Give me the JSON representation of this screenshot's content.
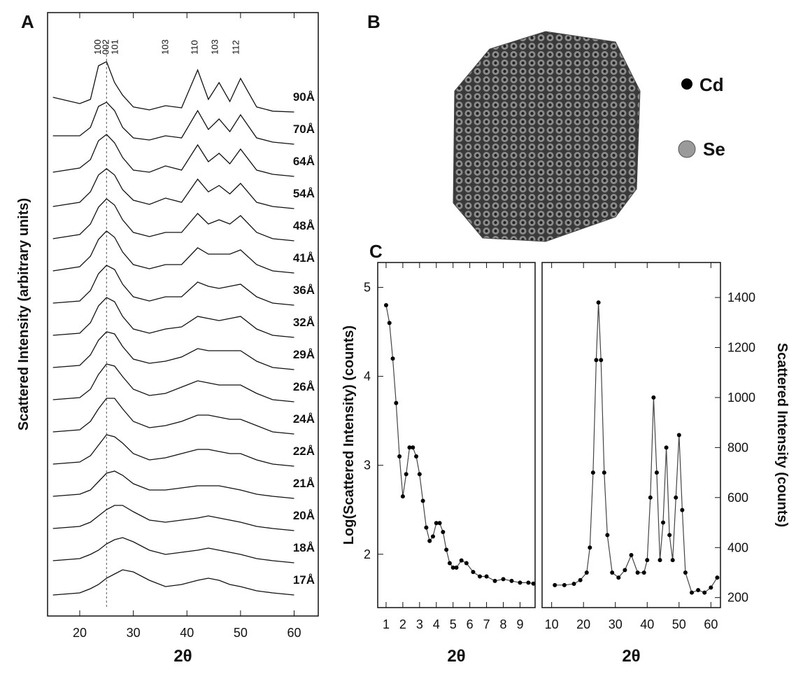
{
  "figure": {
    "panel_labels": [
      "A",
      "B",
      "C"
    ],
    "legend": [
      {
        "name": "Cd",
        "color": "#000000"
      },
      {
        "name": "Se",
        "color": "#9a9a9a"
      }
    ]
  },
  "chart_data": [
    {
      "type": "line",
      "xlabel": "2θ",
      "ylabel": "Scattered Intensity (arbitrary units)",
      "xlim": [
        14,
        64.5
      ],
      "xticks": [
        20,
        30,
        40,
        50,
        60
      ],
      "ref_line": 25,
      "annotations": [
        {
          "text": "100",
          "x": 23.9
        },
        {
          "text": "002",
          "x": 25.4
        },
        {
          "text": "101",
          "x": 27.1
        },
        {
          "text": "103",
          "x": 36.5
        },
        {
          "text": "110",
          "x": 42
        },
        {
          "text": "103",
          "x": 45.8
        },
        {
          "text": "112",
          "x": 49.7
        }
      ],
      "x": [
        15,
        20,
        22,
        23.5,
        25,
        26.5,
        28,
        30,
        33,
        36,
        39,
        42,
        44,
        46,
        48,
        50,
        53,
        56,
        60
      ],
      "series": [
        {
          "name": "90Å",
          "color": "#111111",
          "values": [
            0.35,
            0.2,
            0.3,
            1.1,
            1.2,
            0.7,
            0.4,
            0.12,
            0.05,
            0.15,
            0.1,
            1.0,
            0.3,
            0.7,
            0.25,
            0.8,
            0.12,
            0.02,
            0.0
          ]
        },
        {
          "name": "70Å",
          "color": "#111111",
          "values": [
            0.2,
            0.2,
            0.4,
            0.9,
            1.0,
            0.8,
            0.4,
            0.15,
            0.1,
            0.2,
            0.15,
            0.8,
            0.35,
            0.6,
            0.3,
            0.7,
            0.15,
            0.05,
            0.0
          ]
        },
        {
          "name": "64Å",
          "color": "#111111",
          "values": [
            0.1,
            0.2,
            0.4,
            0.85,
            1.0,
            0.8,
            0.45,
            0.15,
            0.1,
            0.25,
            0.15,
            0.75,
            0.35,
            0.55,
            0.3,
            0.65,
            0.15,
            0.05,
            0.0
          ]
        },
        {
          "name": "54Å",
          "color": "#111111",
          "values": [
            0.05,
            0.15,
            0.4,
            0.8,
            0.95,
            0.8,
            0.45,
            0.2,
            0.1,
            0.25,
            0.15,
            0.7,
            0.4,
            0.55,
            0.35,
            0.6,
            0.15,
            0.05,
            0.0
          ]
        },
        {
          "name": "48Å",
          "color": "#111111",
          "values": [
            0.05,
            0.15,
            0.4,
            0.8,
            1.0,
            0.85,
            0.5,
            0.2,
            0.1,
            0.2,
            0.2,
            0.65,
            0.4,
            0.5,
            0.4,
            0.6,
            0.2,
            0.05,
            0.0
          ]
        },
        {
          "name": "41Å",
          "color": "#111111",
          "values": [
            0.05,
            0.15,
            0.4,
            0.8,
            1.0,
            0.85,
            0.5,
            0.2,
            0.1,
            0.2,
            0.2,
            0.6,
            0.45,
            0.45,
            0.45,
            0.55,
            0.2,
            0.05,
            0.0
          ]
        },
        {
          "name": "36Å",
          "color": "#111111",
          "values": [
            0.05,
            0.1,
            0.35,
            0.75,
            0.95,
            0.85,
            0.5,
            0.2,
            0.1,
            0.2,
            0.2,
            0.55,
            0.45,
            0.4,
            0.45,
            0.5,
            0.2,
            0.05,
            0.0
          ]
        },
        {
          "name": "32Å",
          "color": "#111111",
          "values": [
            0.05,
            0.1,
            0.35,
            0.75,
            0.95,
            0.85,
            0.5,
            0.2,
            0.1,
            0.2,
            0.25,
            0.5,
            0.45,
            0.4,
            0.45,
            0.5,
            0.2,
            0.05,
            0.0
          ]
        },
        {
          "name": "29Å",
          "color": "#111111",
          "values": [
            0.05,
            0.1,
            0.35,
            0.7,
            0.9,
            0.85,
            0.55,
            0.25,
            0.15,
            0.2,
            0.3,
            0.5,
            0.45,
            0.45,
            0.45,
            0.45,
            0.2,
            0.05,
            0.0
          ]
        },
        {
          "name": "26Å",
          "color": "#111111",
          "values": [
            0.05,
            0.1,
            0.3,
            0.65,
            0.9,
            0.85,
            0.6,
            0.3,
            0.15,
            0.2,
            0.35,
            0.5,
            0.45,
            0.4,
            0.4,
            0.4,
            0.2,
            0.05,
            0.0
          ]
        },
        {
          "name": "24Å",
          "color": "#111111",
          "values": [
            0.05,
            0.1,
            0.3,
            0.6,
            0.85,
            0.85,
            0.6,
            0.3,
            0.15,
            0.2,
            0.3,
            0.45,
            0.45,
            0.4,
            0.35,
            0.35,
            0.2,
            0.05,
            0.0
          ]
        },
        {
          "name": "22Å",
          "color": "#111111",
          "values": [
            0.05,
            0.1,
            0.25,
            0.5,
            0.75,
            0.7,
            0.55,
            0.3,
            0.15,
            0.2,
            0.3,
            0.4,
            0.4,
            0.35,
            0.3,
            0.3,
            0.15,
            0.05,
            0.0
          ]
        },
        {
          "name": "21Å",
          "color": "#111111",
          "values": [
            0.05,
            0.1,
            0.2,
            0.4,
            0.6,
            0.65,
            0.55,
            0.35,
            0.2,
            0.2,
            0.25,
            0.3,
            0.3,
            0.3,
            0.25,
            0.2,
            0.1,
            0.05,
            0.0
          ]
        },
        {
          "name": "20Å",
          "color": "#111111",
          "values": [
            0.05,
            0.1,
            0.2,
            0.35,
            0.5,
            0.6,
            0.6,
            0.45,
            0.25,
            0.2,
            0.25,
            0.3,
            0.35,
            0.3,
            0.25,
            0.2,
            0.1,
            0.05,
            0.0
          ]
        },
        {
          "name": "18Å",
          "color": "#111111",
          "values": [
            0.05,
            0.1,
            0.2,
            0.3,
            0.45,
            0.55,
            0.6,
            0.5,
            0.3,
            0.2,
            0.25,
            0.3,
            0.35,
            0.3,
            0.25,
            0.2,
            0.1,
            0.05,
            0.0
          ]
        },
        {
          "name": "17Å",
          "color": "#111111",
          "values": [
            0.0,
            0.05,
            0.15,
            0.25,
            0.4,
            0.5,
            0.6,
            0.55,
            0.35,
            0.2,
            0.25,
            0.35,
            0.4,
            0.35,
            0.25,
            0.2,
            0.1,
            0.05,
            0.0
          ]
        }
      ]
    },
    {
      "type": "scatter",
      "xlabel": "2θ",
      "ylabel": "Log(Scattered Intensity) (counts)",
      "xlim": [
        0.5,
        9.9
      ],
      "xticks": [
        1,
        2,
        3,
        4,
        5,
        6,
        7,
        8,
        9
      ],
      "ylim": [
        1.4,
        5.28
      ],
      "yticks": [
        2,
        3,
        4,
        5
      ],
      "x": [
        1.0,
        1.2,
        1.4,
        1.6,
        1.8,
        2.0,
        2.2,
        2.4,
        2.6,
        2.8,
        3.0,
        3.2,
        3.4,
        3.6,
        3.8,
        4.0,
        4.2,
        4.4,
        4.6,
        4.8,
        5.0,
        5.2,
        5.5,
        5.8,
        6.2,
        6.6,
        7.0,
        7.5,
        8.0,
        8.5,
        9.0,
        9.5,
        9.8
      ],
      "series": [
        {
          "color": "#000000",
          "values": [
            4.8,
            4.6,
            4.2,
            3.7,
            3.1,
            2.65,
            2.9,
            3.2,
            3.2,
            3.1,
            2.9,
            2.6,
            2.3,
            2.15,
            2.2,
            2.35,
            2.35,
            2.25,
            2.05,
            1.9,
            1.85,
            1.85,
            1.93,
            1.9,
            1.8,
            1.75,
            1.75,
            1.7,
            1.72,
            1.7,
            1.68,
            1.68,
            1.67
          ]
        }
      ]
    },
    {
      "type": "scatter",
      "xlabel": "2θ",
      "y2label": "Scattered Intensity (counts)",
      "xlim": [
        7,
        63
      ],
      "xticks": [
        10,
        20,
        30,
        40,
        50,
        60
      ],
      "y2lim": [
        160,
        1540
      ],
      "y2ticks": [
        200,
        400,
        600,
        800,
        1000,
        1200,
        1400
      ],
      "x": [
        11,
        14,
        17,
        19,
        21,
        22,
        23,
        24,
        24.7,
        25.5,
        26.5,
        27.5,
        29,
        31,
        33,
        35,
        37,
        39,
        40,
        41,
        42,
        43,
        44,
        45,
        46,
        47,
        48,
        49,
        50,
        51,
        52,
        54,
        56,
        58,
        60,
        62
      ],
      "series": [
        {
          "color": "#000000",
          "axis": "y2",
          "values": [
            250,
            250,
            255,
            270,
            300,
            400,
            700,
            1150,
            1380,
            1150,
            700,
            450,
            300,
            280,
            310,
            370,
            300,
            300,
            350,
            600,
            1000,
            700,
            350,
            500,
            800,
            450,
            350,
            600,
            850,
            550,
            300,
            220,
            230,
            220,
            240,
            280
          ]
        }
      ]
    }
  ]
}
